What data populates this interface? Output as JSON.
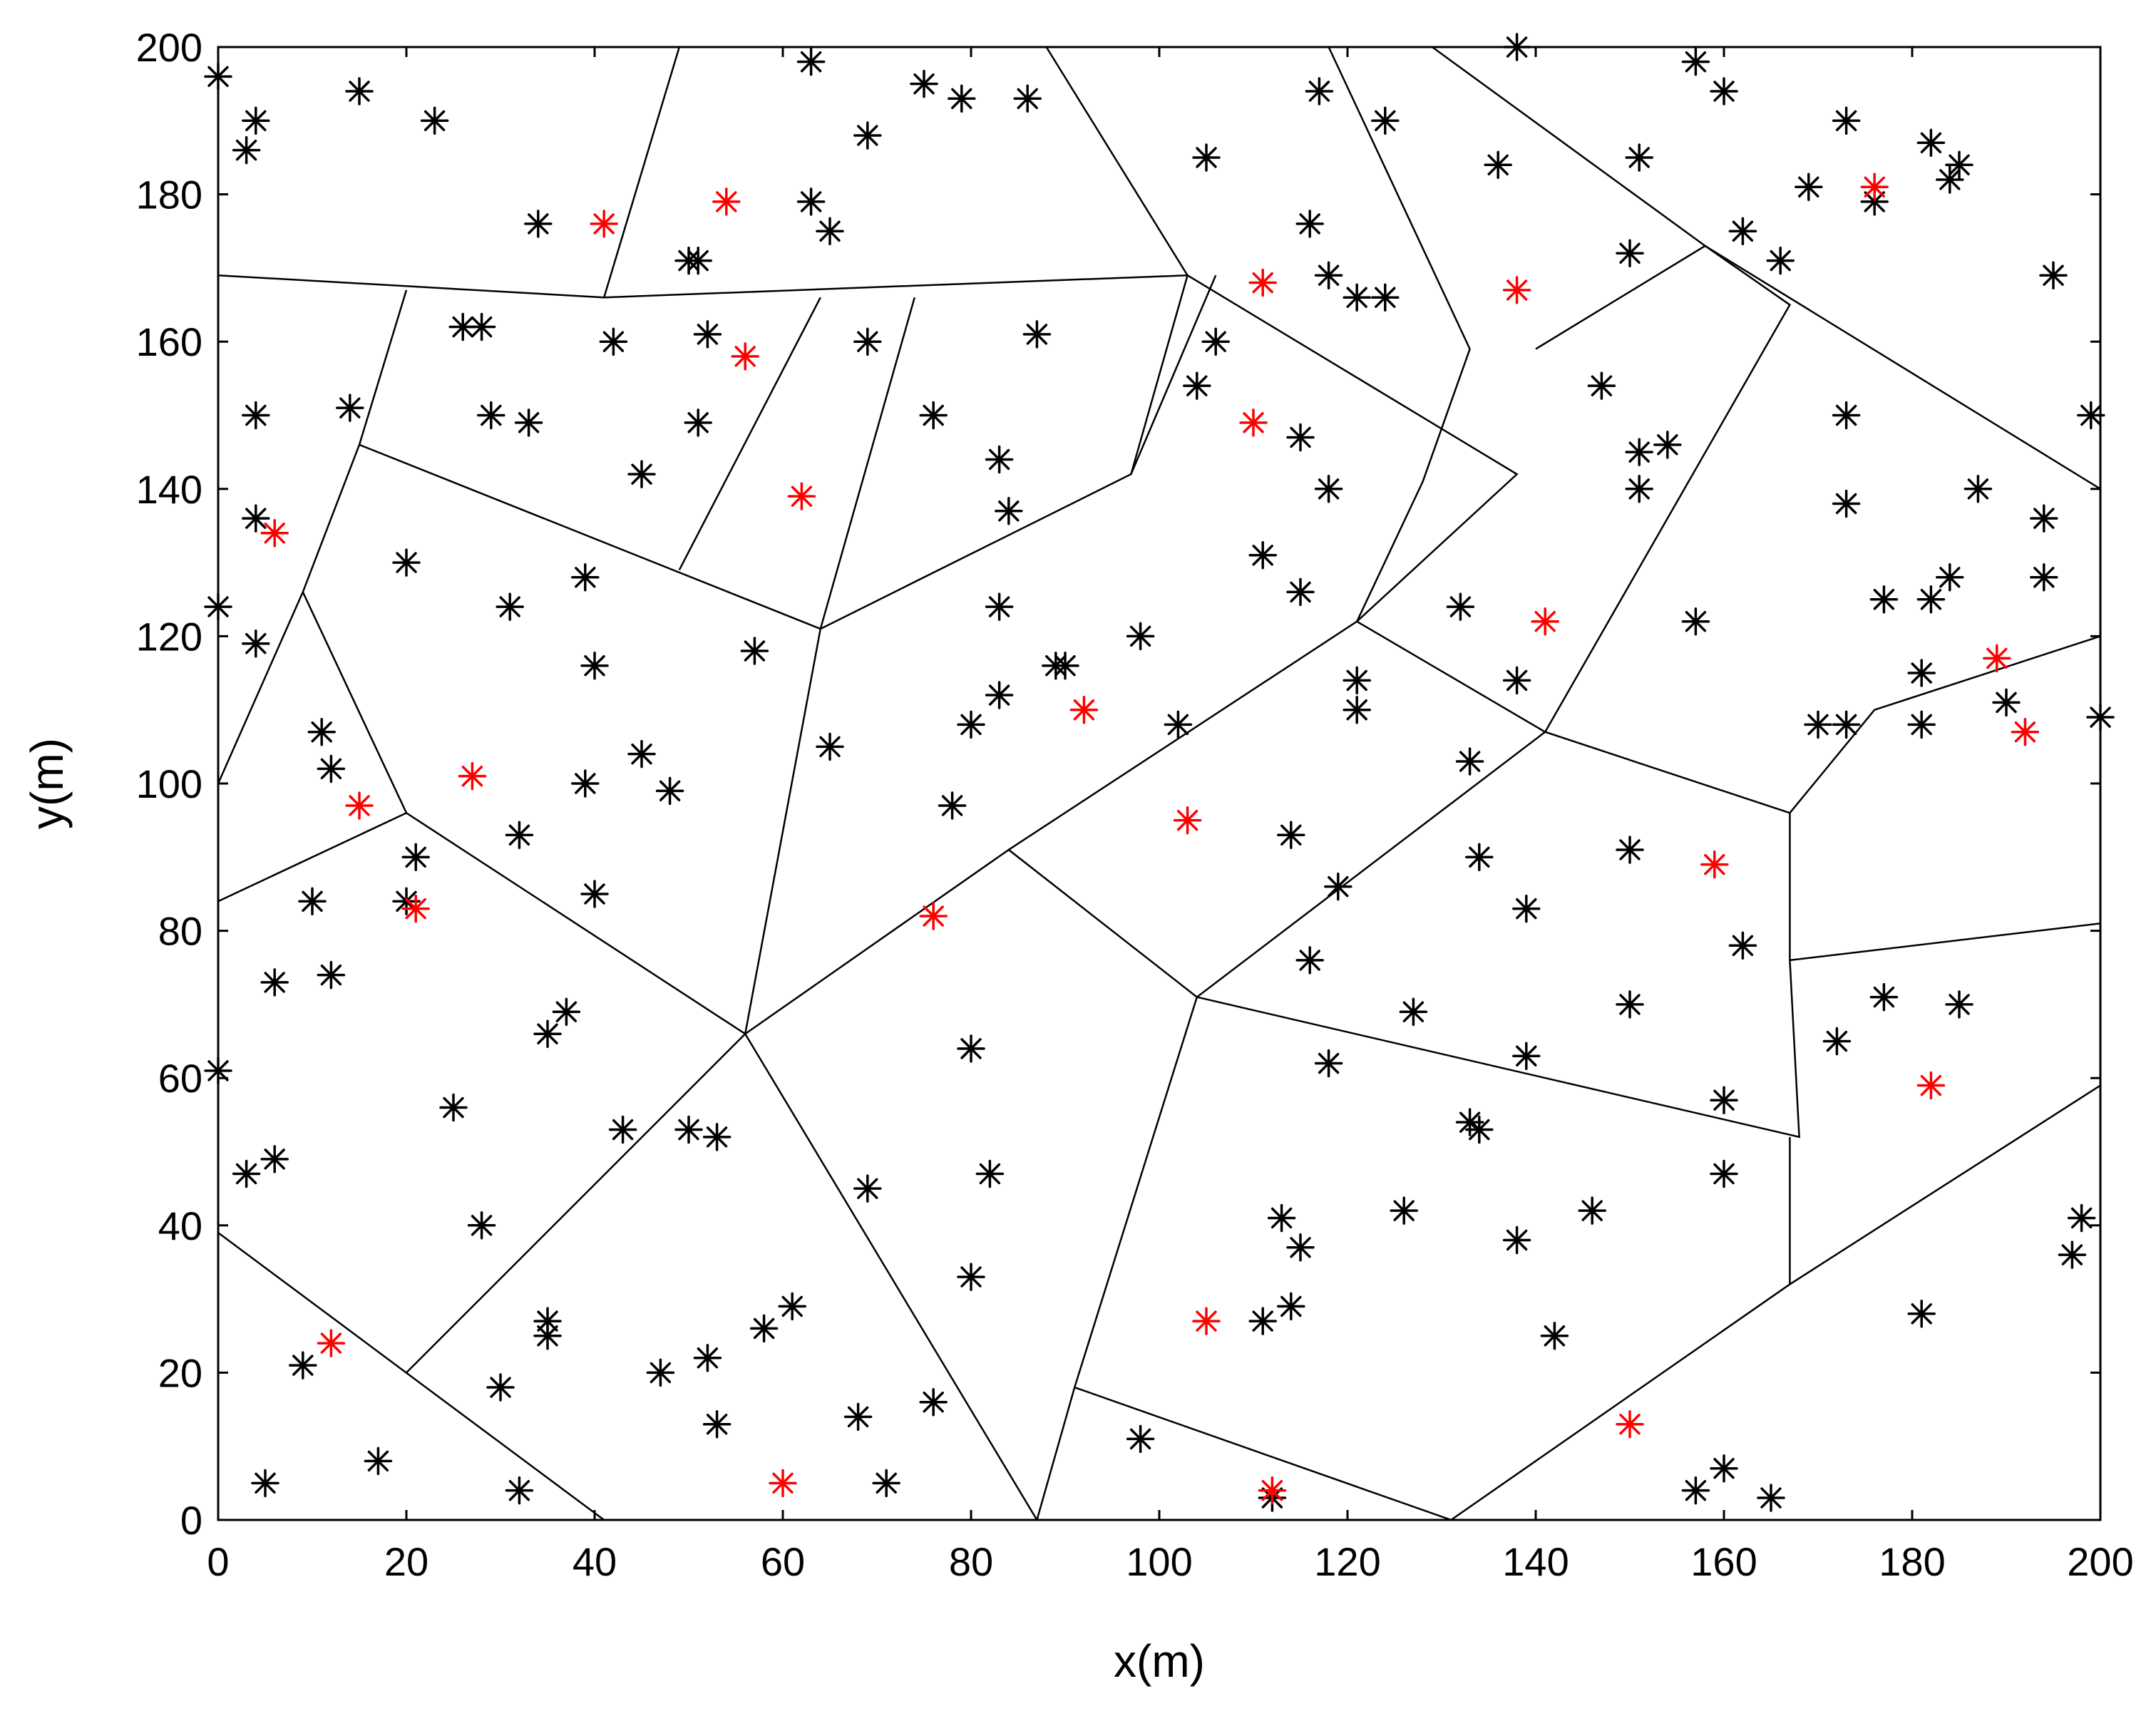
{
  "chart_data": {
    "type": "scatter",
    "title": "",
    "xlabel": "x(m)",
    "ylabel": "y(m)",
    "xlim": [
      0,
      200
    ],
    "ylim": [
      0,
      200
    ],
    "xticks": [
      0,
      20,
      40,
      60,
      80,
      100,
      120,
      140,
      160,
      180,
      200
    ],
    "yticks": [
      0,
      20,
      40,
      60,
      80,
      100,
      120,
      140,
      160,
      180,
      200
    ],
    "grid": false,
    "legend": "none",
    "marker": "asterisk",
    "series": [
      {
        "color": "#000000",
        "points": [
          [
            0,
            196
          ],
          [
            3,
            186
          ],
          [
            4,
            190
          ],
          [
            15,
            194
          ],
          [
            23,
            190
          ],
          [
            34,
            176
          ],
          [
            50,
            171
          ],
          [
            51,
            171
          ],
          [
            63,
            198
          ],
          [
            63,
            179
          ],
          [
            65,
            175
          ],
          [
            69,
            188
          ],
          [
            75,
            195
          ],
          [
            79,
            193
          ],
          [
            86,
            193
          ],
          [
            26,
            162
          ],
          [
            28,
            162
          ],
          [
            29,
            150
          ],
          [
            33,
            149
          ],
          [
            42,
            160
          ],
          [
            45,
            142
          ],
          [
            51,
            149
          ],
          [
            52,
            161
          ],
          [
            69,
            160
          ],
          [
            76,
            150
          ],
          [
            83,
            144
          ],
          [
            84,
            137
          ],
          [
            87,
            161
          ],
          [
            4,
            150
          ],
          [
            14,
            151
          ],
          [
            4,
            136
          ],
          [
            0,
            124
          ],
          [
            4,
            119
          ],
          [
            11,
            107
          ],
          [
            12,
            102
          ],
          [
            20,
            130
          ],
          [
            31,
            124
          ],
          [
            39,
            128
          ],
          [
            40,
            116
          ],
          [
            39,
            100
          ],
          [
            32,
            93
          ],
          [
            40,
            85
          ],
          [
            45,
            104
          ],
          [
            48,
            99
          ],
          [
            57,
            118
          ],
          [
            105,
            185
          ],
          [
            106,
            160
          ],
          [
            104,
            154
          ],
          [
            117,
            194
          ],
          [
            116,
            176
          ],
          [
            118,
            169
          ],
          [
            121,
            166
          ],
          [
            124,
            190
          ],
          [
            124,
            166
          ],
          [
            111,
            131
          ],
          [
            115,
            147
          ],
          [
            118,
            140
          ],
          [
            115,
            126
          ],
          [
            138,
            200
          ],
          [
            136,
            184
          ],
          [
            151,
            185
          ],
          [
            150,
            172
          ],
          [
            157,
            198
          ],
          [
            160,
            194
          ],
          [
            162,
            175
          ],
          [
            166,
            171
          ],
          [
            169,
            181
          ],
          [
            173,
            190
          ],
          [
            176,
            179
          ],
          [
            182,
            187
          ],
          [
            184,
            182
          ],
          [
            185,
            184
          ],
          [
            195,
            169
          ],
          [
            199,
            150
          ],
          [
            147,
            154
          ],
          [
            151,
            145
          ],
          [
            154,
            146
          ],
          [
            151,
            140
          ],
          [
            132,
            124
          ],
          [
            138,
            114
          ],
          [
            133,
            103
          ],
          [
            157,
            122
          ],
          [
            173,
            150
          ],
          [
            173,
            138
          ],
          [
            177,
            125
          ],
          [
            182,
            125
          ],
          [
            184,
            128
          ],
          [
            187,
            140
          ],
          [
            194,
            136
          ],
          [
            194,
            128
          ],
          [
            170,
            108
          ],
          [
            173,
            108
          ],
          [
            181,
            115
          ],
          [
            181,
            108
          ],
          [
            190,
            111
          ],
          [
            200,
            109
          ],
          [
            83,
            124
          ],
          [
            83,
            112
          ],
          [
            89,
            116
          ],
          [
            90,
            116
          ],
          [
            98,
            120
          ],
          [
            80,
            108
          ],
          [
            102,
            108
          ],
          [
            121,
            114
          ],
          [
            121,
            110
          ],
          [
            65,
            105
          ],
          [
            78,
            97
          ],
          [
            80,
            64
          ],
          [
            82,
            47
          ],
          [
            69,
            45
          ],
          [
            80,
            33
          ],
          [
            76,
            16
          ],
          [
            71,
            5
          ],
          [
            68,
            14
          ],
          [
            10,
            84
          ],
          [
            12,
            74
          ],
          [
            6,
            73
          ],
          [
            20,
            84
          ],
          [
            21,
            90
          ],
          [
            35,
            66
          ],
          [
            37,
            69
          ],
          [
            25,
            56
          ],
          [
            28,
            40
          ],
          [
            0,
            61
          ],
          [
            3,
            47
          ],
          [
            6,
            49
          ],
          [
            43,
            53
          ],
          [
            50,
            53
          ],
          [
            53,
            52
          ],
          [
            35,
            27
          ],
          [
            35,
            25
          ],
          [
            30,
            18
          ],
          [
            47,
            20
          ],
          [
            52,
            22
          ],
          [
            53,
            13
          ],
          [
            58,
            26
          ],
          [
            61,
            29
          ],
          [
            9,
            21
          ],
          [
            5,
            5
          ],
          [
            17,
            8
          ],
          [
            32,
            4
          ],
          [
            114,
            93
          ],
          [
            119,
            86
          ],
          [
            116,
            76
          ],
          [
            127,
            69
          ],
          [
            118,
            62
          ],
          [
            134,
            90
          ],
          [
            139,
            83
          ],
          [
            150,
            91
          ],
          [
            150,
            70
          ],
          [
            162,
            78
          ],
          [
            139,
            63
          ],
          [
            133,
            54
          ],
          [
            134,
            53
          ],
          [
            160,
            57
          ],
          [
            160,
            47
          ],
          [
            126,
            42
          ],
          [
            113,
            41
          ],
          [
            115,
            37
          ],
          [
            114,
            29
          ],
          [
            111,
            27
          ],
          [
            138,
            38
          ],
          [
            146,
            42
          ],
          [
            142,
            25
          ],
          [
            98,
            11
          ],
          [
            112,
            3
          ],
          [
            157,
            4
          ],
          [
            160,
            7
          ],
          [
            165,
            3
          ],
          [
            172,
            65
          ],
          [
            177,
            71
          ],
          [
            185,
            70
          ],
          [
            181,
            28
          ],
          [
            197,
            36
          ],
          [
            198,
            41
          ]
        ]
      },
      {
        "color": "#ff0000",
        "points": [
          [
            41,
            176
          ],
          [
            54,
            179
          ],
          [
            56,
            158
          ],
          [
            62,
            139
          ],
          [
            6,
            134
          ],
          [
            15,
            97
          ],
          [
            27,
            101
          ],
          [
            21,
            83
          ],
          [
            12,
            24
          ],
          [
            60,
            5
          ],
          [
            76,
            82
          ],
          [
            92,
            110
          ],
          [
            103,
            95
          ],
          [
            105,
            27
          ],
          [
            112,
            4
          ],
          [
            111,
            168
          ],
          [
            110,
            149
          ],
          [
            138,
            167
          ],
          [
            141,
            122
          ],
          [
            176,
            181
          ],
          [
            189,
            117
          ],
          [
            192,
            107
          ],
          [
            159,
            89
          ],
          [
            182,
            59
          ],
          [
            150,
            13
          ]
        ]
      }
    ],
    "cell_boundaries": [
      [
        [
          0,
          169
        ],
        [
          41,
          166
        ],
        [
          103,
          169
        ]
      ],
      [
        [
          41,
          166
        ],
        [
          49,
          200
        ]
      ],
      [
        [
          103,
          169
        ],
        [
          88,
          200
        ]
      ],
      [
        [
          20,
          167
        ],
        [
          15,
          146
        ],
        [
          9,
          126
        ],
        [
          0,
          100
        ]
      ],
      [
        [
          15,
          146
        ],
        [
          64,
          121
        ],
        [
          97,
          142
        ],
        [
          106,
          169
        ]
      ],
      [
        [
          64,
          121
        ],
        [
          74,
          166
        ]
      ],
      [
        [
          49,
          129
        ],
        [
          64,
          166
        ]
      ],
      [
        [
          97,
          142
        ],
        [
          103,
          169
        ]
      ],
      [
        [
          64,
          121
        ],
        [
          56,
          66
        ],
        [
          84,
          91
        ],
        [
          104,
          71
        ]
      ],
      [
        [
          9,
          126
        ],
        [
          20,
          96
        ],
        [
          56,
          66
        ]
      ],
      [
        [
          0,
          84
        ],
        [
          20,
          96
        ]
      ],
      [
        [
          0,
          39
        ],
        [
          41,
          0
        ]
      ],
      [
        [
          20,
          20
        ],
        [
          56,
          66
        ]
      ],
      [
        [
          56,
          66
        ],
        [
          87,
          0
        ]
      ],
      [
        [
          104,
          71
        ],
        [
          91,
          18
        ],
        [
          131,
          0
        ]
      ],
      [
        [
          104,
          71
        ],
        [
          141,
          107
        ],
        [
          167,
          96
        ],
        [
          167,
          76
        ],
        [
          168,
          52
        ],
        [
          104,
          71
        ]
      ],
      [
        [
          84,
          91
        ],
        [
          121,
          122
        ],
        [
          141,
          107
        ]
      ],
      [
        [
          121,
          122
        ],
        [
          138,
          142
        ],
        [
          103,
          169
        ]
      ],
      [
        [
          121,
          122
        ],
        [
          128,
          141
        ],
        [
          133,
          159
        ],
        [
          118,
          200
        ]
      ],
      [
        [
          141,
          107
        ],
        [
          167,
          165
        ],
        [
          158,
          173
        ],
        [
          140,
          159
        ]
      ],
      [
        [
          158,
          173
        ],
        [
          129,
          200
        ]
      ],
      [
        [
          158,
          173
        ],
        [
          200,
          140
        ]
      ],
      [
        [
          167,
          96
        ],
        [
          176,
          110
        ],
        [
          200,
          120
        ]
      ],
      [
        [
          167,
          76
        ],
        [
          200,
          81
        ]
      ],
      [
        [
          167,
          52
        ],
        [
          167,
          32
        ],
        [
          200,
          59
        ]
      ],
      [
        [
          167,
          32
        ],
        [
          131,
          0
        ]
      ],
      [
        [
          91,
          18
        ],
        [
          87,
          0
        ]
      ]
    ]
  }
}
